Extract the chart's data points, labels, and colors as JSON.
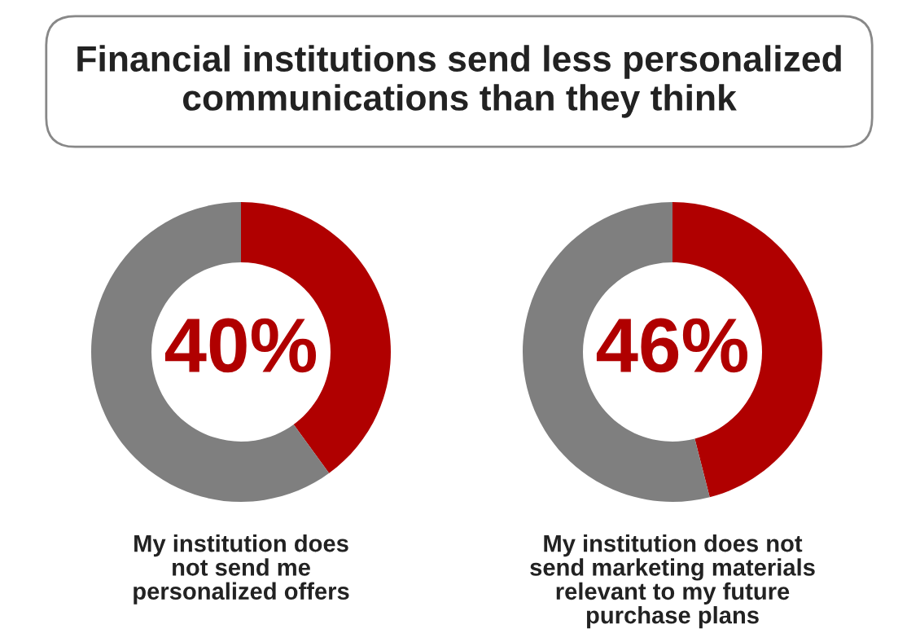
{
  "chart_data": [
    {
      "type": "donut",
      "title": "Financial institutions send less personalized communications than they think",
      "categories": [
        null,
        null
      ],
      "values": [
        40,
        60
      ],
      "colors": [
        "#b00000",
        "#7f7f7f"
      ],
      "value_labels": [
        "40%",
        null
      ],
      "xlabel": "My institution does\nnot send me\npersonalized offers"
    },
    {
      "type": "donut",
      "categories": [
        null,
        null
      ],
      "values": [
        46,
        54
      ],
      "colors": [
        "#b00000",
        "#7f7f7f"
      ],
      "value_labels": [
        "46%",
        null
      ],
      "xlabel": "My institution does not\nsend marketing materials\nrelevant to my future\npurchase plans"
    }
  ]
}
